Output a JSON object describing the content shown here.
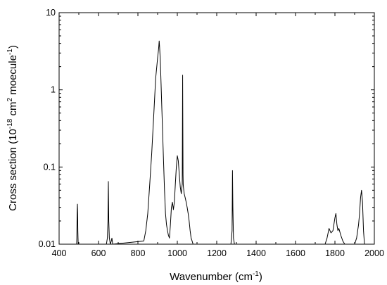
{
  "chart_data": {
    "type": "line",
    "title": "",
    "xlabel": {
      "main": "Wavenumber (cm",
      "sup": "-1",
      "close": ")"
    },
    "ylabel": {
      "p1": "Cross section (10",
      "sup1": "-18",
      "p2": " cm",
      "sup2": "2",
      "p3": " moecule",
      "sup3": "-1",
      "p4": ")"
    },
    "xlim": [
      400,
      2000
    ],
    "ylim": [
      0.01,
      10
    ],
    "yscale": "log",
    "x_ticks": [
      400,
      600,
      800,
      1000,
      1200,
      1400,
      1600,
      1800,
      2000
    ],
    "x_tick_labels": [
      "400",
      "600",
      "800",
      "1000",
      "1200",
      "1400",
      "1600",
      "1800",
      "2000"
    ],
    "y_ticks": [
      0.01,
      0.1,
      1,
      10
    ],
    "y_tick_labels": [
      "0.01",
      "0.1",
      "1",
      "10"
    ],
    "grid": false,
    "legend": "none",
    "line_color": "#000000",
    "series": [
      {
        "x": [
          489,
          490,
          491,
          492,
          493,
          494,
          495,
          496,
          497,
          640,
          645,
          648,
          650,
          652,
          655,
          660,
          665,
          668,
          672,
          830,
          840,
          850,
          860,
          870,
          880,
          890,
          900,
          905,
          908,
          910,
          913,
          916,
          920,
          925,
          930,
          935,
          940,
          945,
          950,
          955,
          960,
          965,
          970,
          975,
          980,
          985,
          990,
          995,
          1000,
          1005,
          1010,
          1015,
          1020,
          1025,
          1027,
          1029,
          1030,
          1031,
          1033,
          1035,
          1040,
          1045,
          1050,
          1055,
          1060,
          1065,
          1070,
          1075,
          1080,
          1272,
          1275,
          1278,
          1280,
          1282,
          1285,
          1290,
          1750,
          1760,
          1770,
          1780,
          1790,
          1800,
          1805,
          1810,
          1815,
          1820,
          1830,
          1840,
          1850,
          1900,
          1910,
          1920,
          1925,
          1930,
          1935,
          1940,
          1945,
          1950
        ],
        "y": [
          0.01,
          0.012,
          0.02,
          0.028,
          0.033,
          0.025,
          0.015,
          0.012,
          0.01,
          0.01,
          0.012,
          0.02,
          0.065,
          0.02,
          0.012,
          0.01,
          0.011,
          0.012,
          0.01,
          0.011,
          0.015,
          0.025,
          0.06,
          0.15,
          0.45,
          1.4,
          2.6,
          3.4,
          4.3,
          3.6,
          2.6,
          1.6,
          0.75,
          0.3,
          0.12,
          0.05,
          0.025,
          0.018,
          0.015,
          0.013,
          0.012,
          0.018,
          0.03,
          0.035,
          0.028,
          0.035,
          0.06,
          0.1,
          0.14,
          0.12,
          0.08,
          0.055,
          0.045,
          0.06,
          1.55,
          0.08,
          0.06,
          0.055,
          0.05,
          0.045,
          0.04,
          0.035,
          0.03,
          0.025,
          0.02,
          0.015,
          0.012,
          0.011,
          0.01,
          0.01,
          0.012,
          0.015,
          0.09,
          0.03,
          0.012,
          0.01,
          0.01,
          0.012,
          0.016,
          0.014,
          0.015,
          0.022,
          0.025,
          0.018,
          0.015,
          0.016,
          0.013,
          0.011,
          0.01,
          0.01,
          0.012,
          0.018,
          0.025,
          0.04,
          0.05,
          0.035,
          0.015,
          0.01
        ]
      }
    ]
  }
}
